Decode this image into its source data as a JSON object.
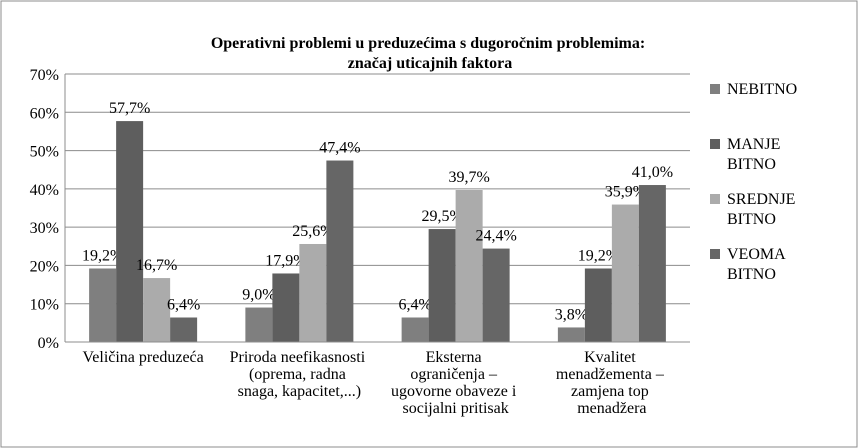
{
  "chart_data": {
    "type": "bar",
    "title": "Operativni problemi u preduzećima s dugoročnim problemima:\nznačaj uticajnih faktora",
    "categories": [
      "Veličina preduzeća",
      "Priroda neefikasnosti\n(oprema, radna\nsnaga, kapacitet,...)",
      "Eksterna\nograničenja –\nugovorne obaveze i\nsocijalni pritisak",
      "Kvalitet\nmenadžementa –\nzamjena top\nmenadžera"
    ],
    "series": [
      {
        "name": "NEBITNO",
        "color": "#7f7f7f",
        "values": [
          19.2,
          9.0,
          6.4,
          3.8
        ],
        "value_labels": [
          "19,2%",
          "9,0%",
          "6,4%",
          "3,8%"
        ]
      },
      {
        "name": "MANJE\nBITNO",
        "color": "#5e5e5e",
        "values": [
          57.7,
          17.9,
          29.5,
          19.2
        ],
        "value_labels": [
          "57,7%",
          "17,9%",
          "29,5%",
          "19,2%"
        ]
      },
      {
        "name": "SREDNJE\nBITNO",
        "color": "#ababab",
        "values": [
          16.7,
          25.6,
          39.7,
          35.9
        ],
        "value_labels": [
          "16,7%",
          "25,6%",
          "39,7%",
          "35,9%"
        ]
      },
      {
        "name": "VEOMA\nBITNO",
        "color": "#666666",
        "values": [
          6.4,
          47.4,
          24.4,
          41.0
        ],
        "value_labels": [
          "6,4%",
          "47,4%",
          "24,4%",
          "41,0%"
        ]
      }
    ],
    "ylim": [
      0,
      70
    ],
    "yticks": [
      {
        "value": 0,
        "label": "0%"
      },
      {
        "value": 10,
        "label": "10%"
      },
      {
        "value": 20,
        "label": "20%"
      },
      {
        "value": 30,
        "label": "30%"
      },
      {
        "value": 40,
        "label": "40%"
      },
      {
        "value": 50,
        "label": "50%"
      },
      {
        "value": 60,
        "label": "60%"
      },
      {
        "value": 70,
        "label": "70%"
      }
    ],
    "grid": true,
    "legend": "right"
  }
}
